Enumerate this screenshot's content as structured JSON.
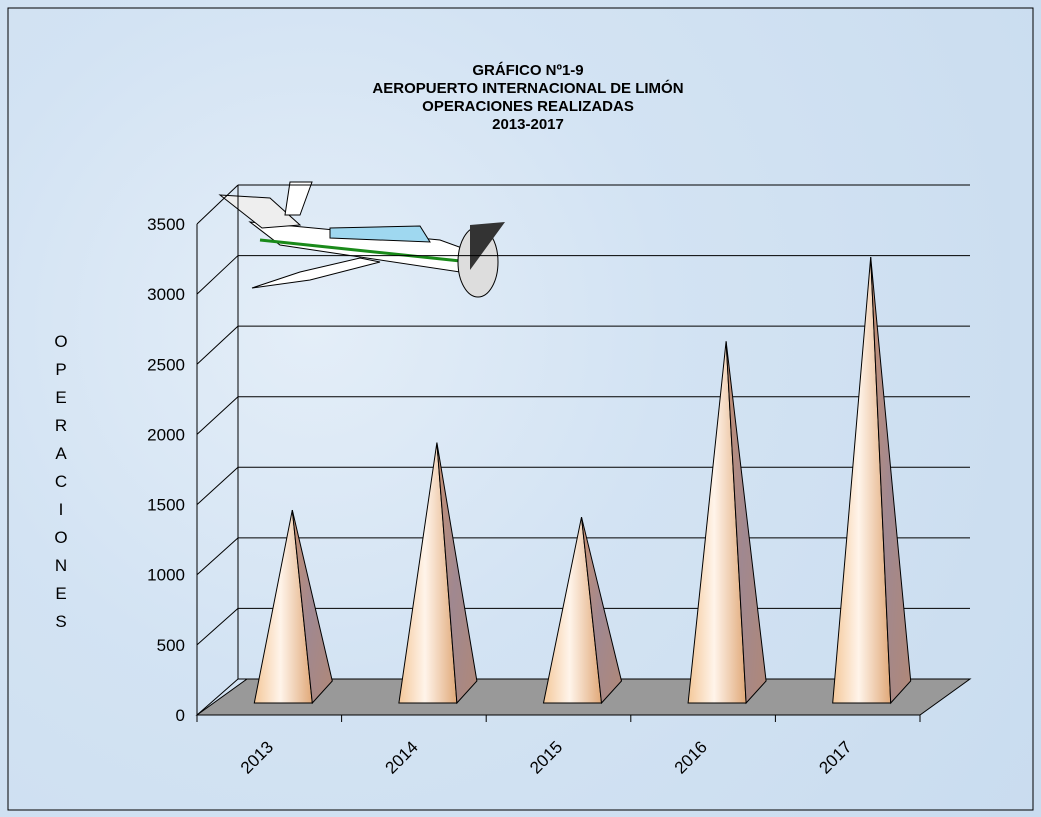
{
  "chart_data": {
    "type": "pyramid-bar",
    "title_lines": [
      "GRÁFICO Nº1-9",
      "AEROPUERTO INTERNACIONAL DE LIMÓN",
      "OPERACIONES REALIZADAS",
      "2013-2017"
    ],
    "y_label": "OPERACIONES",
    "categories": [
      "2013",
      "2014",
      "2015",
      "2016",
      "2017"
    ],
    "values": [
      1330,
      1810,
      1280,
      2530,
      3130
    ],
    "ylim": [
      0,
      3500
    ],
    "yticks": [
      0,
      500,
      1000,
      1500,
      2000,
      2500,
      3000,
      3500
    ],
    "grid": true
  }
}
